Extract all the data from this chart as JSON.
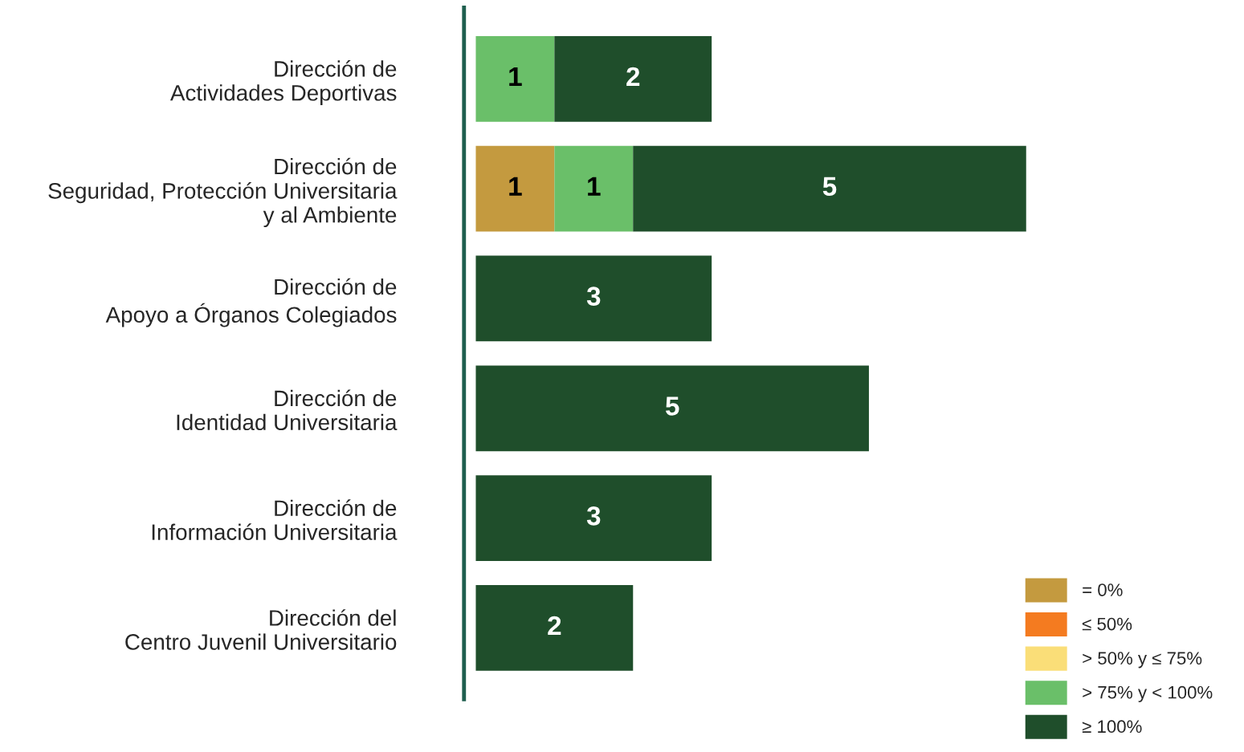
{
  "chart_data": {
    "type": "bar",
    "orientation": "horizontal",
    "stacked": true,
    "data_labels": true,
    "tick_labels": "y",
    "legend": "bottom right",
    "grid": false,
    "categories": [
      "Dirección de\nActividades Deportivas",
      "Dirección de\nSeguridad, Protección Universitaria\ny al Ambiente",
      "Dirección de\nApoyo a Órganos Colegiados",
      "Dirección de\nIdentidad Universitaria",
      "Dirección de\nInformación Universitaria",
      "Dirección del\nCentro Juvenil Universitario"
    ],
    "series": [
      {
        "name": "= 0%",
        "color": "#c49a3f",
        "values": [
          null,
          1,
          null,
          null,
          null,
          null
        ]
      },
      {
        "name": "≤ 50%",
        "color": "#f47b20",
        "values": [
          null,
          null,
          null,
          null,
          null,
          null
        ]
      },
      {
        "name": "> 50% y ≤ 75%",
        "color": "#fade78",
        "values": [
          null,
          null,
          null,
          null,
          null,
          null
        ]
      },
      {
        "name": "> 75% y < 100%",
        "color": "#6abf69",
        "values": [
          1,
          1,
          null,
          null,
          null,
          null
        ]
      },
      {
        "name": "≥ 100%",
        "color": "#1f4e2b",
        "values": [
          2,
          5,
          3,
          5,
          3,
          2
        ]
      }
    ]
  }
}
